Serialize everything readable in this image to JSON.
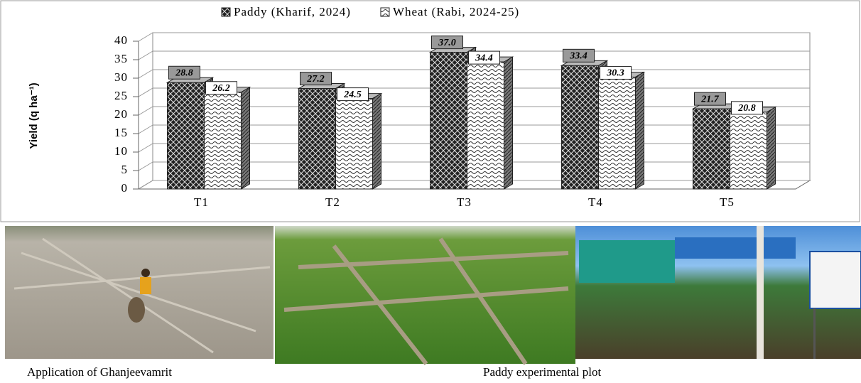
{
  "chart_data": {
    "type": "bar3d",
    "y_label": "Yield (q ha⁻¹)",
    "categories": [
      "T1",
      "T2",
      "T3",
      "T4",
      "T5"
    ],
    "series": [
      {
        "name": "Paddy (Kharif, 2024)",
        "color": "#222222",
        "values": [
          28.8,
          27.2,
          37.0,
          33.4,
          21.7
        ],
        "value_labels": [
          "28.8",
          "27.2",
          "37.0",
          "33.4",
          "21.7"
        ]
      },
      {
        "name": "Wheat (Rabi, 2024-25)",
        "color": "#ffffff",
        "values": [
          26.2,
          24.5,
          34.4,
          30.3,
          20.8
        ],
        "value_labels": [
          "26.2",
          "24.5",
          "34.4",
          "30.3",
          "20.8"
        ]
      }
    ],
    "ylim": [
      0,
      40
    ],
    "yticks": [
      0,
      5,
      10,
      15,
      20,
      25,
      30,
      35,
      40
    ],
    "grid": true,
    "legend": "top"
  },
  "photos": [
    {
      "caption": "Application of Ghanjeevamrit"
    },
    {
      "caption": "Paddy experimental plot"
    },
    {}
  ]
}
